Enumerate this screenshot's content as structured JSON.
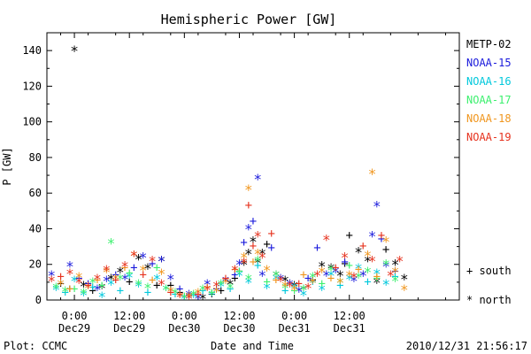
{
  "chart_data": {
    "type": "scatter",
    "title": "Hemispheric Power [GW]",
    "ylabel": "P [GW]",
    "xlabel": "Date and Time",
    "ylim": [
      0,
      150
    ],
    "yticks": [
      0,
      20,
      40,
      60,
      80,
      100,
      120,
      140
    ],
    "xlim_hours": [
      -6,
      84
    ],
    "xticks": [
      {
        "hour": 0,
        "time": "0:00",
        "date": "Dec29"
      },
      {
        "hour": 12,
        "time": "12:00",
        "date": "Dec29"
      },
      {
        "hour": 24,
        "time": "0:00",
        "date": "Dec30"
      },
      {
        "hour": 36,
        "time": "12:00",
        "date": "Dec30"
      },
      {
        "hour": 48,
        "time": "0:00",
        "date": "Dec31"
      },
      {
        "hour": 60,
        "time": "12:00",
        "date": "Dec31"
      }
    ],
    "legend_position": "right",
    "marker_legend": {
      "south": "+ south",
      "north": "* north"
    },
    "series": [
      {
        "name": "METP-02",
        "color": "#000000",
        "x": [
          -3,
          -1,
          0,
          2,
          4,
          6,
          8,
          10,
          12,
          14,
          16,
          18,
          19,
          21,
          23,
          25,
          28,
          30,
          32,
          34,
          35,
          36,
          37,
          38,
          39,
          40,
          41,
          42,
          44,
          46,
          48,
          50,
          52,
          54,
          56,
          58,
          59,
          60,
          62,
          64,
          66,
          68,
          70,
          72
        ],
        "y": [
          9,
          6,
          140,
          8,
          5,
          7,
          12,
          16,
          10,
          23,
          18,
          8,
          22,
          8,
          4,
          2,
          1,
          3,
          5,
          9,
          12,
          16,
          20,
          26,
          33,
          21,
          26,
          31,
          14,
          11,
          8,
          6,
          11,
          19,
          18,
          14,
          20,
          36,
          27,
          22,
          10,
          28,
          20,
          12
        ],
        "mark": [
          "+",
          "+",
          "*",
          "*",
          "+",
          "*",
          "*",
          "*",
          "+",
          "*",
          "*",
          "+",
          "*",
          "+",
          "+",
          "*",
          "*",
          "+",
          "+",
          "*",
          "+",
          "+",
          "*",
          "*",
          "*",
          "*",
          "*",
          "+",
          "*",
          "*",
          "*",
          "*",
          "+",
          "*",
          "*",
          "*",
          "+",
          "+",
          "*",
          "*",
          "*",
          "+",
          "*",
          "*"
        ]
      },
      {
        "name": "NOAA-15",
        "color": "#1a1adc",
        "x": [
          -5,
          -1,
          1,
          3,
          5,
          7,
          9,
          11,
          13,
          15,
          17,
          19,
          21,
          23,
          25,
          27,
          29,
          31,
          33,
          35,
          36,
          37,
          38,
          39,
          40,
          41,
          43,
          45,
          47,
          49,
          51,
          53,
          55,
          57,
          59,
          61,
          63,
          65,
          66,
          67,
          68,
          70
        ],
        "y": [
          14,
          19,
          12,
          9,
          6,
          11,
          14,
          12,
          18,
          24,
          20,
          22,
          12,
          6,
          3,
          1,
          9,
          6,
          11,
          14,
          20,
          32,
          40,
          44,
          68,
          14,
          29,
          12,
          9,
          5,
          12,
          29,
          14,
          16,
          21,
          11,
          14,
          36,
          53,
          34,
          19,
          16
        ],
        "mark": [
          "*",
          "*",
          "+",
          "+",
          "*",
          "*",
          "+",
          "*",
          "+",
          "*",
          "+",
          "*",
          "*",
          "+",
          "*",
          "*",
          "*",
          "+",
          "*",
          "+",
          "*",
          "+",
          "*",
          "+",
          "*",
          "*",
          "+",
          "*",
          "*",
          "*",
          "+",
          "+",
          "*",
          "*",
          "+",
          "*",
          "*",
          "*",
          "*",
          "+",
          "*",
          "+"
        ]
      },
      {
        "name": "NOAA-16",
        "color": "#00c8dc",
        "x": [
          -4,
          -2,
          0,
          2,
          4,
          6,
          8,
          10,
          12,
          14,
          16,
          18,
          20,
          22,
          24,
          26,
          28,
          30,
          32,
          34,
          36,
          38,
          40,
          42,
          44,
          46,
          48,
          50,
          52,
          54,
          56,
          58,
          60,
          62,
          64,
          66,
          68,
          70
        ],
        "y": [
          6,
          4,
          11,
          3,
          7,
          2,
          9,
          5,
          13,
          8,
          4,
          12,
          6,
          3,
          1,
          2,
          5,
          3,
          8,
          6,
          14,
          10,
          19,
          7,
          12,
          5,
          7,
          3,
          10,
          6,
          14,
          8,
          12,
          18,
          10,
          15,
          9,
          13
        ],
        "mark": [
          "*",
          "+",
          "*",
          "*",
          "+",
          "*",
          "*",
          "+",
          "*",
          "*",
          "+",
          "*",
          "*",
          "+",
          "*",
          "*",
          "+",
          "*",
          "*",
          "+",
          "*",
          "*",
          "+",
          "*",
          "*",
          "+",
          "*",
          "*",
          "+",
          "*",
          "*",
          "+",
          "*",
          "*",
          "+",
          "*",
          "*",
          "+"
        ]
      },
      {
        "name": "NOAA-17",
        "color": "#3cf06e",
        "x": [
          -4,
          -2,
          0,
          2,
          4,
          6,
          8,
          10,
          12,
          14,
          16,
          18,
          20,
          22,
          24,
          26,
          28,
          30,
          32,
          34,
          36,
          38,
          40,
          42,
          44,
          46,
          48,
          50,
          52,
          54,
          56,
          58,
          60,
          62,
          64,
          66,
          68,
          70
        ],
        "y": [
          7,
          5,
          6,
          4,
          10,
          8,
          32,
          12,
          15,
          9,
          7,
          18,
          6,
          4,
          2,
          3,
          6,
          4,
          9,
          7,
          16,
          12,
          22,
          10,
          14,
          7,
          5,
          6,
          13,
          9,
          17,
          10,
          19,
          13,
          16,
          12,
          20,
          11
        ],
        "mark": [
          "*",
          "*",
          "+",
          "*",
          "*",
          "+",
          "*",
          "*",
          "+",
          "*",
          "*",
          "+",
          "*",
          "*",
          "+",
          "*",
          "*",
          "+",
          "*",
          "*",
          "+",
          "*",
          "*",
          "+",
          "*",
          "*",
          "+",
          "*",
          "*",
          "+",
          "*",
          "*",
          "+",
          "*",
          "*",
          "+",
          "*",
          "*"
        ]
      },
      {
        "name": "NOAA-18",
        "color": "#f0961e",
        "x": [
          -3,
          -1,
          1,
          3,
          5,
          7,
          9,
          11,
          13,
          15,
          17,
          19,
          21,
          23,
          25,
          27,
          29,
          31,
          33,
          35,
          37,
          38,
          39,
          40,
          42,
          44,
          46,
          48,
          50,
          52,
          54,
          56,
          58,
          60,
          62,
          64,
          65,
          66,
          68,
          70,
          72
        ],
        "y": [
          9,
          6,
          13,
          7,
          11,
          16,
          12,
          18,
          25,
          17,
          11,
          15,
          5,
          3,
          2,
          4,
          7,
          5,
          10,
          17,
          24,
          62,
          21,
          26,
          17,
          11,
          8,
          6,
          14,
          10,
          16,
          12,
          10,
          14,
          17,
          25,
          71,
          13,
          33,
          16,
          6
        ],
        "mark": [
          "*",
          "+",
          "*",
          "*",
          "+",
          "*",
          "*",
          "+",
          "*",
          "*",
          "+",
          "*",
          "*",
          "+",
          "*",
          "*",
          "+",
          "*",
          "*",
          "+",
          "*",
          "*",
          "+",
          "*",
          "*",
          "+",
          "*",
          "*",
          "+",
          "*",
          "*",
          "+",
          "*",
          "*",
          "+",
          "*",
          "*",
          "+",
          "*",
          "*",
          "*"
        ]
      },
      {
        "name": "NOAA-19",
        "color": "#e6321e",
        "x": [
          -5,
          -3,
          -1,
          1,
          3,
          5,
          7,
          9,
          11,
          13,
          15,
          17,
          19,
          21,
          23,
          25,
          27,
          29,
          31,
          33,
          35,
          37,
          38,
          39,
          40,
          41,
          43,
          45,
          47,
          49,
          51,
          53,
          55,
          57,
          59,
          61,
          63,
          65,
          67,
          69,
          71
        ],
        "y": [
          11,
          13,
          15,
          10,
          8,
          12,
          17,
          11,
          19,
          25,
          14,
          22,
          9,
          4,
          2,
          1,
          3,
          6,
          8,
          12,
          17,
          21,
          53,
          30,
          36,
          24,
          37,
          11,
          8,
          9,
          7,
          14,
          34,
          18,
          24,
          13,
          30,
          22,
          36,
          14,
          22
        ],
        "mark": [
          "*",
          "+",
          "*",
          "*",
          "+",
          "*",
          "*",
          "+",
          "*",
          "*",
          "+",
          "*",
          "*",
          "+",
          "*",
          "*",
          "+",
          "*",
          "*",
          "+",
          "*",
          "*",
          "+",
          "+",
          "*",
          "*",
          "+",
          "*",
          "*",
          "+",
          "*",
          "*",
          "*",
          "+",
          "*",
          "*",
          "+",
          "*",
          "+",
          "*",
          "*"
        ]
      }
    ]
  },
  "footer": {
    "plot_credit": "Plot: CCMC",
    "timestamp": "2010/12/31 21:56:17"
  }
}
